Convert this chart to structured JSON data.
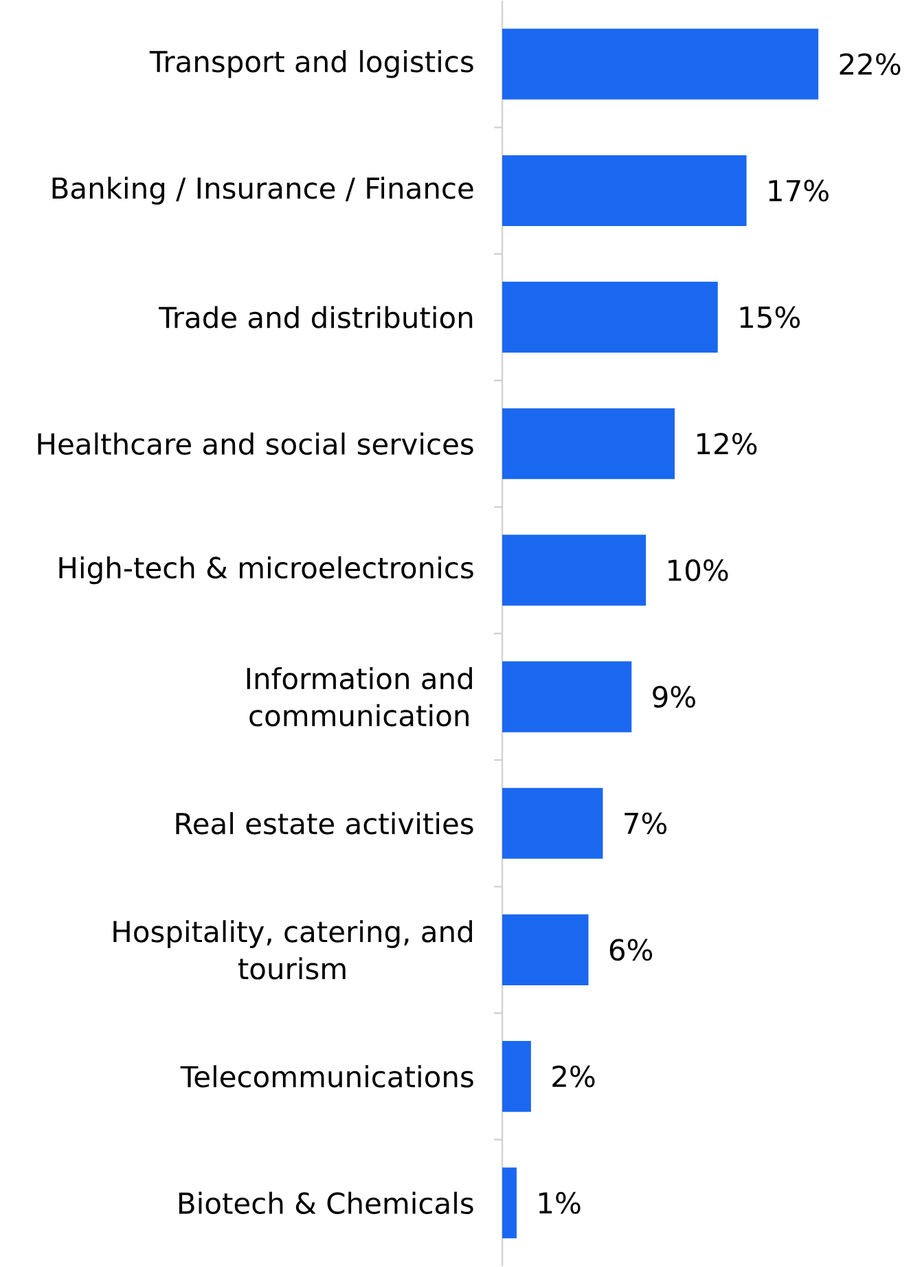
{
  "chart_data": {
    "type": "bar",
    "orientation": "horizontal",
    "categories": [
      "Transport and logistics",
      "Banking / Insurance / Finance",
      "Trade and distribution",
      "Healthcare and social services",
      "High-tech & microelectronics",
      "Information and communication",
      "Real estate activities",
      "Hospitality, catering, and tourism",
      "Telecommunications",
      "Biotech & Chemicals"
    ],
    "values": [
      22,
      17,
      15,
      12,
      10,
      9,
      7,
      6,
      2,
      1
    ],
    "value_labels": [
      "22%",
      "17%",
      "15%",
      "12%",
      "10%",
      "9%",
      "7%",
      "6%",
      "2%",
      "1%"
    ],
    "color": "#1b68f0"
  }
}
